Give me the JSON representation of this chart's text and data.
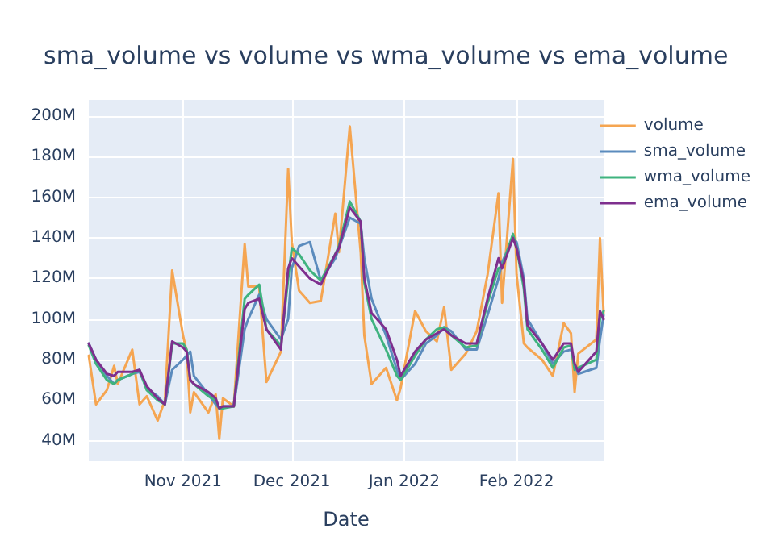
{
  "chart_data": {
    "type": "line",
    "title": "sma_volume vs volume vs wma_volume vs ema_volume",
    "xlabel": "Date",
    "x": [
      "2021-10-06",
      "2021-10-08",
      "2021-10-11",
      "2021-10-13",
      "2021-10-14",
      "2021-10-18",
      "2021-10-20",
      "2021-10-22",
      "2021-10-25",
      "2021-10-27",
      "2021-10-29",
      "2021-11-01",
      "2021-11-02",
      "2021-11-03",
      "2021-11-04",
      "2021-11-08",
      "2021-11-10",
      "2021-11-11",
      "2021-11-12",
      "2021-11-15",
      "2021-11-18",
      "2021-11-19",
      "2021-11-22",
      "2021-11-24",
      "2021-11-28",
      "2021-11-30",
      "2021-12-01",
      "2021-12-03",
      "2021-12-06",
      "2021-12-09",
      "2021-12-13",
      "2021-12-14",
      "2021-12-17",
      "2021-12-20",
      "2021-12-21",
      "2021-12-23",
      "2021-12-27",
      "2021-12-30",
      "2021-12-31",
      "2022-01-04",
      "2022-01-07",
      "2022-01-10",
      "2022-01-12",
      "2022-01-14",
      "2022-01-18",
      "2022-01-21",
      "2022-01-24",
      "2022-01-27",
      "2022-01-28",
      "2022-01-31",
      "2022-02-01",
      "2022-02-03",
      "2022-02-04",
      "2022-02-08",
      "2022-02-11",
      "2022-02-14",
      "2022-02-16",
      "2022-02-17",
      "2022-02-18",
      "2022-02-23",
      "2022-02-24",
      "2022-02-25"
    ],
    "series": [
      {
        "name": "volume",
        "color": "#f5a551",
        "values": [
          82,
          58,
          65,
          77,
          68,
          85,
          58,
          62,
          50,
          60,
          124,
          92,
          84,
          54,
          64,
          54,
          63,
          41,
          61,
          57,
          137,
          116,
          116,
          69,
          84,
          174,
          138,
          114,
          108,
          109,
          152,
          133,
          195,
          133,
          92,
          68,
          76,
          60,
          66,
          104,
          94,
          89,
          106,
          75,
          83,
          94,
          122,
          162,
          108,
          179,
          122,
          88,
          86,
          80,
          72,
          98,
          93,
          64,
          83,
          90,
          140,
          103
        ]
      },
      {
        "name": "sma_volume",
        "color": "#5b8bbd",
        "values": [
          88,
          80,
          72,
          68,
          70,
          73,
          74,
          66,
          62,
          58,
          75,
          80,
          82,
          84,
          72,
          63,
          58,
          56,
          57,
          57,
          95,
          100,
          112,
          100,
          90,
          100,
          125,
          136,
          138,
          119,
          130,
          135,
          150,
          147,
          130,
          110,
          92,
          75,
          70,
          78,
          88,
          92,
          96,
          94,
          85,
          85,
          102,
          120,
          128,
          140,
          138,
          120,
          100,
          88,
          78,
          84,
          85,
          78,
          73,
          76,
          90,
          102
        ]
      },
      {
        "name": "wma_volume",
        "color": "#3fb37f",
        "values": [
          87,
          78,
          70,
          68,
          70,
          73,
          75,
          65,
          60,
          58,
          88,
          88,
          85,
          70,
          68,
          62,
          60,
          56,
          56,
          57,
          110,
          112,
          117,
          95,
          87,
          120,
          135,
          132,
          124,
          119,
          132,
          136,
          158,
          148,
          118,
          100,
          85,
          72,
          70,
          82,
          90,
          95,
          96,
          92,
          86,
          87,
          108,
          125,
          126,
          142,
          135,
          115,
          95,
          85,
          76,
          86,
          87,
          75,
          76,
          80,
          100,
          104
        ]
      },
      {
        "name": "ema_volume",
        "color": "#7e2f8e",
        "values": [
          88,
          80,
          73,
          72,
          74,
          74,
          75,
          67,
          61,
          58,
          89,
          86,
          84,
          70,
          68,
          64,
          61,
          56,
          57,
          57,
          105,
          108,
          110,
          95,
          85,
          125,
          130,
          126,
          120,
          117,
          132,
          135,
          155,
          148,
          120,
          103,
          95,
          80,
          72,
          84,
          90,
          93,
          95,
          92,
          88,
          88,
          110,
          130,
          125,
          140,
          135,
          118,
          97,
          88,
          80,
          88,
          88,
          78,
          74,
          84,
          104,
          100
        ]
      }
    ],
    "xlim": [
      "2021-10-06",
      "2022-02-25"
    ],
    "xticks": [
      {
        "value": "2021-11-01",
        "label": "Nov 2021"
      },
      {
        "value": "2021-12-01",
        "label": "Dec 2021"
      },
      {
        "value": "2022-01-01",
        "label": "Jan 2022"
      },
      {
        "value": "2022-02-01",
        "label": "Feb 2022"
      }
    ],
    "ylim": [
      30,
      208
    ],
    "yticks": [
      {
        "value": 40,
        "label": "40M"
      },
      {
        "value": 60,
        "label": "60M"
      },
      {
        "value": 80,
        "label": "80M"
      },
      {
        "value": 100,
        "label": "100M"
      },
      {
        "value": 120,
        "label": "120M"
      },
      {
        "value": 140,
        "label": "140M"
      },
      {
        "value": 160,
        "label": "160M"
      },
      {
        "value": 180,
        "label": "180M"
      },
      {
        "value": 200,
        "label": "200M"
      }
    ],
    "grid": true,
    "legend": "top right",
    "marker": "none",
    "line_style": "solid"
  }
}
